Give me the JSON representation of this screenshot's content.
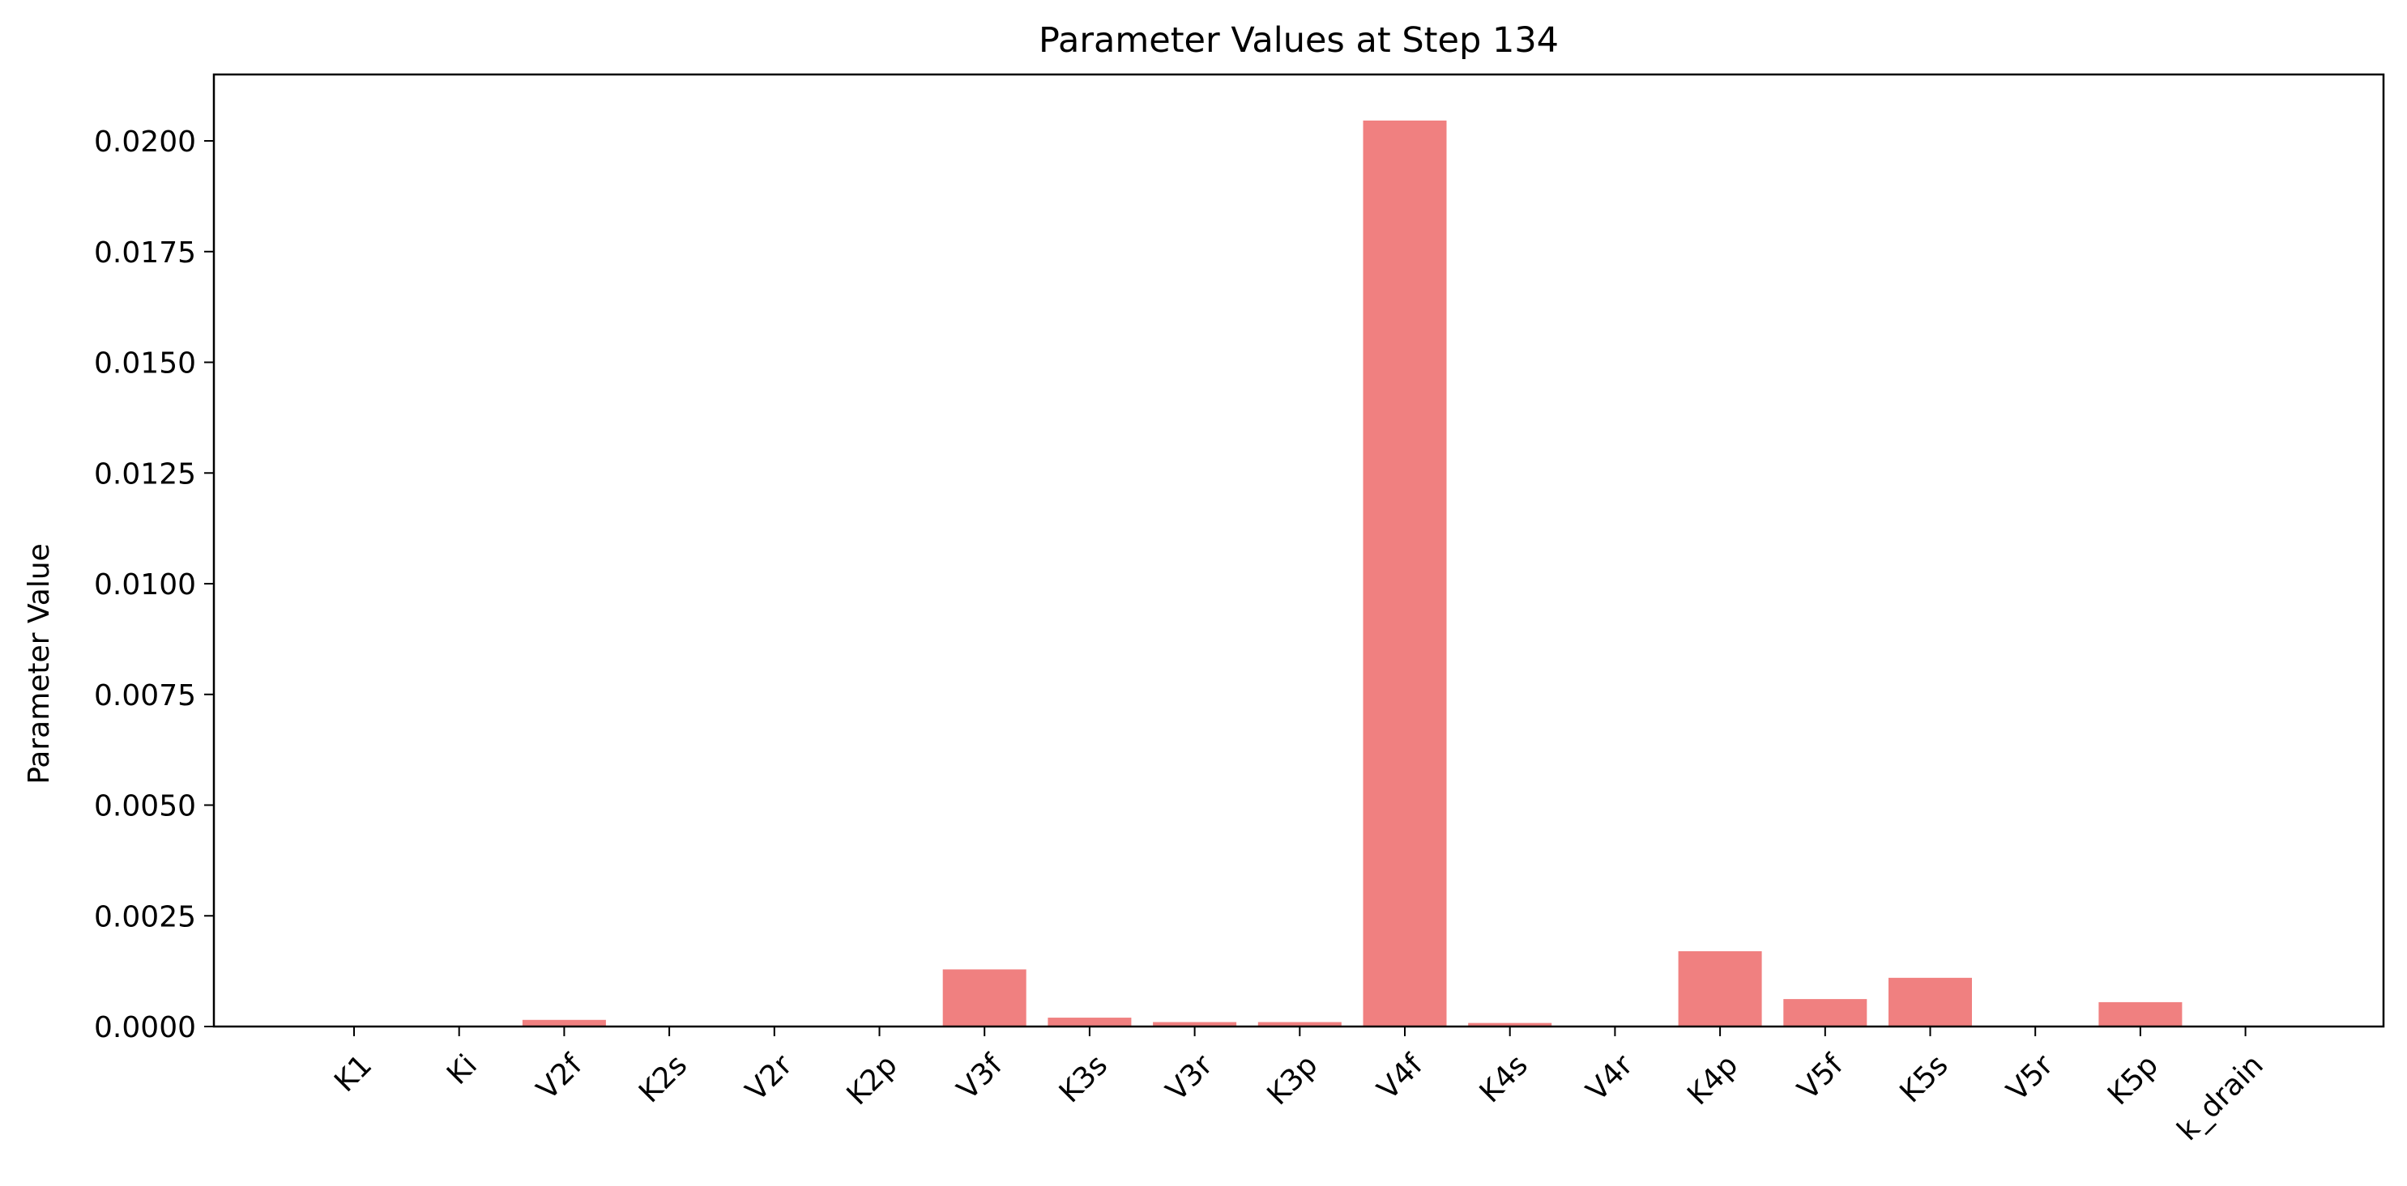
{
  "chart_data": {
    "type": "bar",
    "title": "Parameter Values at Step 134",
    "xlabel": "",
    "ylabel": "Parameter Value",
    "categories": [
      "K1",
      "Ki",
      "V2f",
      "K2s",
      "V2r",
      "K2p",
      "V3f",
      "K3s",
      "V3r",
      "K3p",
      "V4f",
      "K4s",
      "V4r",
      "K4p",
      "V5f",
      "K5s",
      "V5r",
      "K5p",
      "k_drain"
    ],
    "values": [
      0.0,
      0.0,
      0.00015,
      0.0,
      0.0,
      0.0,
      0.00129,
      0.0002,
      0.0001,
      0.0001,
      0.02046,
      8e-05,
      0.0,
      0.0017,
      0.00062,
      0.0011,
      0.0,
      0.00055,
      0.0
    ],
    "ylim": [
      0,
      0.0215
    ],
    "yticks": [
      "0.0000",
      "0.0025",
      "0.0050",
      "0.0075",
      "0.0100",
      "0.0125",
      "0.0150",
      "0.0175",
      "0.0200"
    ],
    "bar_color": "#f08080",
    "grid": false,
    "legend": "none"
  }
}
